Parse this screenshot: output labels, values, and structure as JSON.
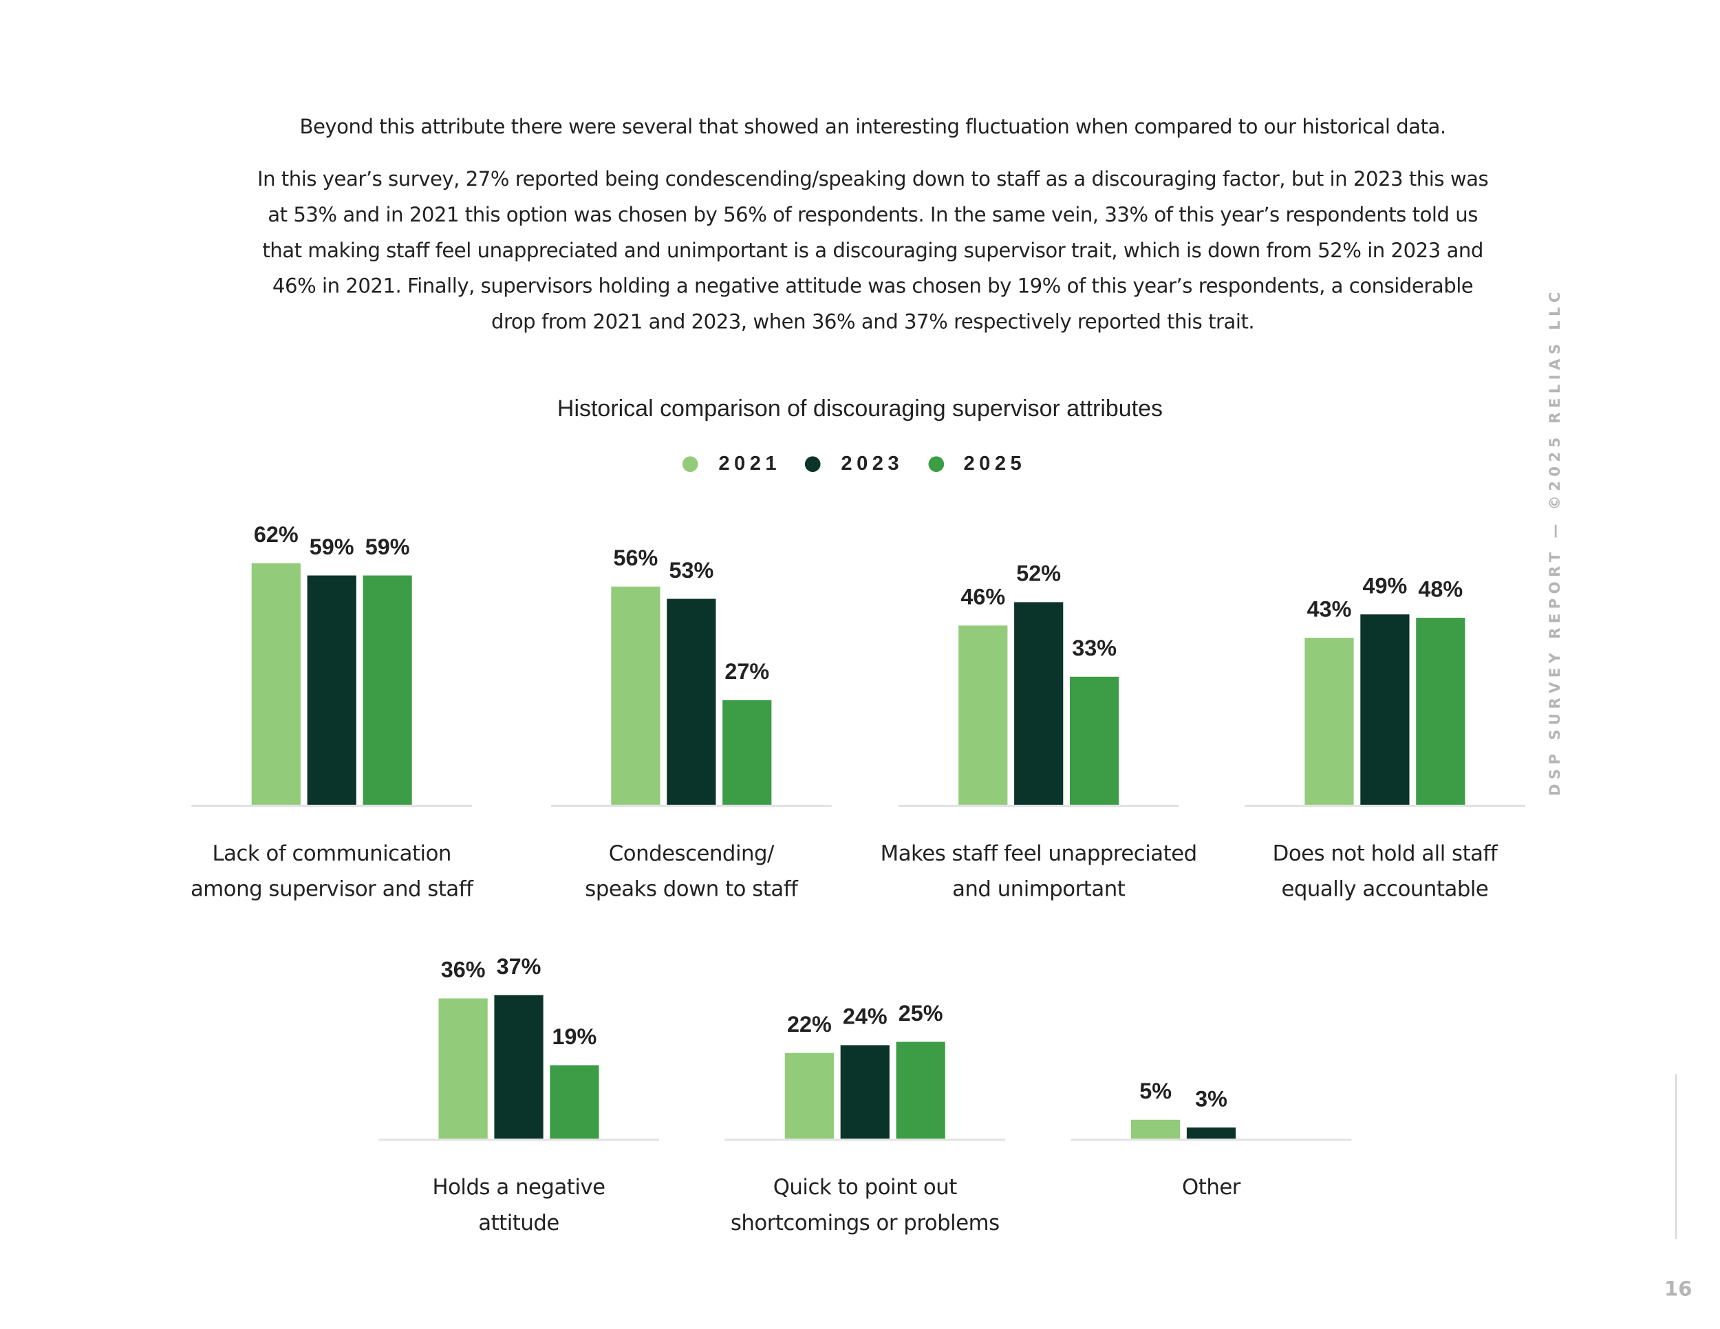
{
  "paragraphs": [
    "Beyond this attribute there were several that showed an interesting fluctuation when compared to our historical data.",
    "In this year’s survey, 27% reported being condescending/speaking down to staff as a discouraging factor, but in 2023 this was at 53% and in 2021 this option was chosen by 56% of respondents. In the same vein, 33% of this year’s respondents told us that making staff feel unappreciated and unimportant is a discouraging supervisor trait, which is down from 52% in 2023 and 46% in 2021. Finally, supervisors holding a negative attitude was chosen by 19% of this year’s respondents, a considerable drop from 2021 and 2023, when 36% and 37% respectively reported this trait."
  ],
  "chart_data": {
    "type": "bar",
    "title": "Historical comparison of discouraging supervisor attributes",
    "categories": [
      "Lack of communication\namong supervisor and staff",
      "Condescending/\nspeaks down to staff",
      "Makes staff feel unappreciated\nand unimportant",
      "Does not hold all staff\nequally accountable",
      "Holds a negative\nattitude",
      "Quick to point out\nshortcomings or problems",
      "Other"
    ],
    "series": [
      {
        "name": "2021",
        "color": "#92cb7a",
        "values": [
          62,
          56,
          46,
          43,
          36,
          22,
          5
        ],
        "value_labels": [
          "62%",
          "56%",
          "46%",
          "43%",
          "36%",
          "22%",
          "5%"
        ]
      },
      {
        "name": "2023",
        "color": "#0a3329",
        "values": [
          59,
          53,
          52,
          49,
          37,
          24,
          3
        ],
        "value_labels": [
          "59%",
          "53%",
          "52%",
          "49%",
          "37%",
          "24%",
          "3%"
        ]
      },
      {
        "name": "2025",
        "color": "#3d9c46",
        "values": [
          59,
          27,
          33,
          48,
          19,
          25,
          null
        ],
        "value_labels": [
          "59%",
          "27%",
          "33%",
          "48%",
          "19%",
          "25%",
          null
        ]
      }
    ]
  },
  "sidebar": "DSP SURVEY REPORT — ©2025 RELIAS LLC",
  "page_number": "16"
}
